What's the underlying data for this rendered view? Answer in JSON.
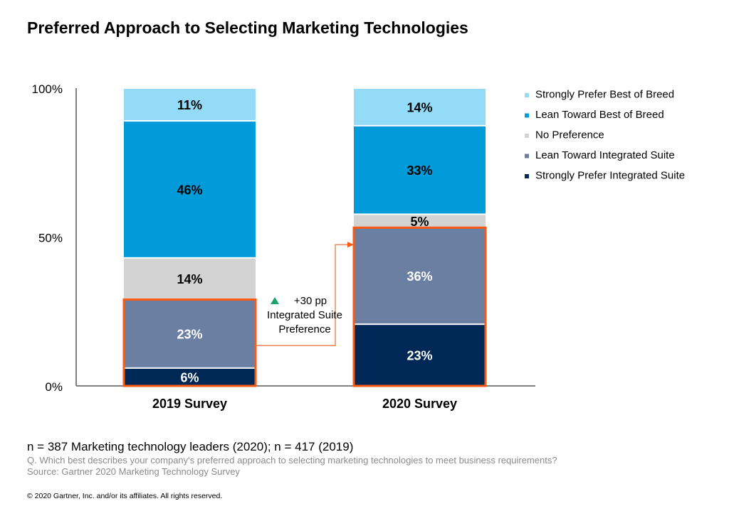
{
  "chart_data": {
    "type": "bar",
    "stacked": true,
    "title": "Preferred Approach to Selecting Marketing Technologies",
    "categories": [
      "2019 Survey",
      "2020 Survey"
    ],
    "yticks": [
      "0%",
      "50%",
      "100%"
    ],
    "ylim": [
      0,
      100
    ],
    "legend_position": "right",
    "series": [
      {
        "name": "Strongly Prefer Integrated Suite",
        "color": "#002856",
        "values": [
          6,
          23
        ],
        "label_color": "#ffffff"
      },
      {
        "name": "Lean Toward Integrated Suite",
        "color": "#6b7fa3",
        "values": [
          23,
          36
        ],
        "label_color": "#ffffff"
      },
      {
        "name": "No Preference",
        "color": "#d3d3d3",
        "values": [
          14,
          5
        ],
        "label_color": "#000000"
      },
      {
        "name": "Lean Toward Best of Breed",
        "color": "#009bd8",
        "values": [
          46,
          33
        ],
        "label_color": "#000000"
      },
      {
        "name": "Strongly Prefer Best of Breed",
        "color": "#93dbf7",
        "values": [
          11,
          14
        ],
        "label_color": "#000000"
      }
    ],
    "legend_order": [
      "Strongly Prefer Best of Breed",
      "Lean Toward Best of Breed",
      "No Preference",
      "Lean Toward Integrated Suite",
      "Strongly Prefer Integrated Suite"
    ],
    "annotation": {
      "lines": [
        "+30 pp",
        "Integrated Suite",
        "Preference"
      ],
      "icon": "triangle-up-icon",
      "icon_color": "#1aa36a",
      "highlight_color": "#fa5a14"
    }
  },
  "footer": {
    "sample": "n = 387 Marketing technology leaders (2020); n = 417 (2019)",
    "question": "Q.  Which best describes your company's preferred approach to selecting marketing technologies to meet business requirements?",
    "source": "Source: Gartner 2020 Marketing Technology Survey",
    "copyright": "© 2020 Gartner, Inc. and/or its affiliates. All rights reserved."
  }
}
